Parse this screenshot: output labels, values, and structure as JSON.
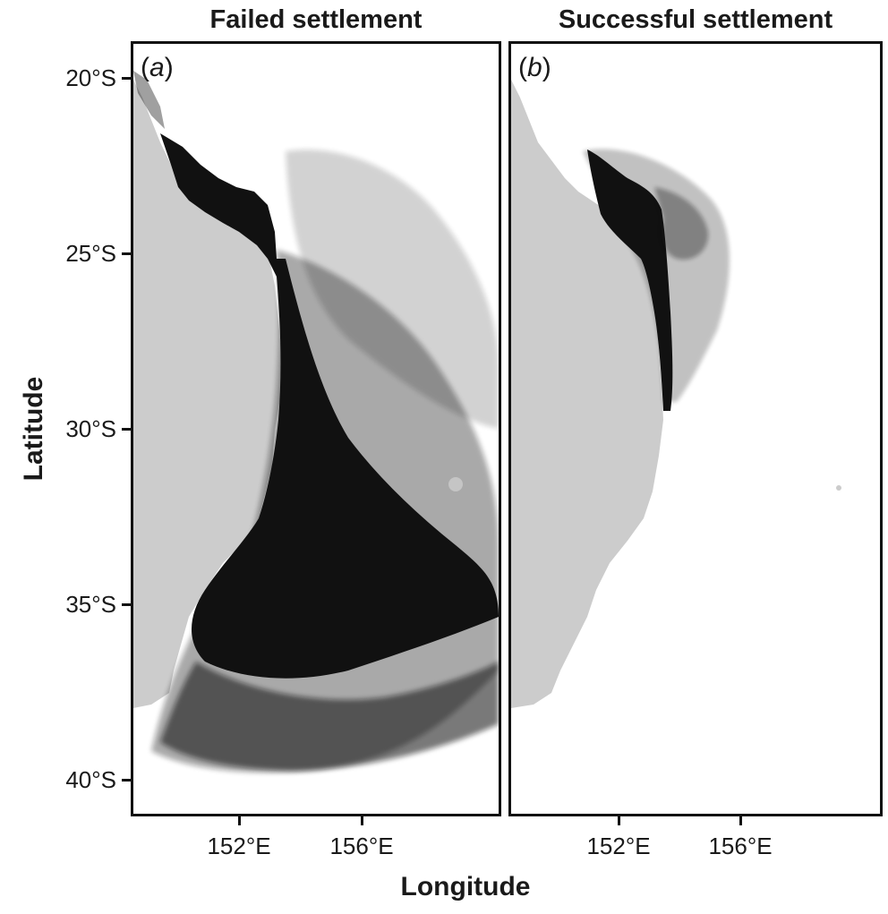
{
  "panels": [
    {
      "title": "Failed settlement",
      "tag_open": "(",
      "tag_letter": "a",
      "tag_close": ")"
    },
    {
      "title": "Successful settlement",
      "tag_open": "(",
      "tag_letter": "b",
      "tag_close": ")"
    }
  ],
  "axes": {
    "y_title": "Latitude",
    "x_title": "Longitude",
    "y_ticks": [
      "20°S",
      "25°S",
      "30°S",
      "35°S",
      "40°S"
    ],
    "x_ticks": [
      "152°E",
      "156°E"
    ]
  },
  "colors": {
    "land": "#cccccc",
    "tracks": "#111111",
    "frame": "#111111",
    "background": "#ffffff"
  }
}
